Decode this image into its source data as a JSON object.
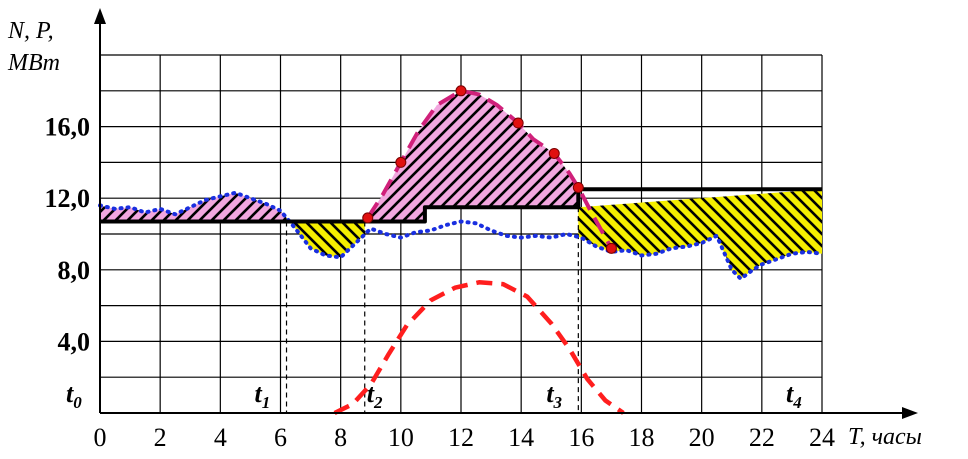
{
  "chart_data": {
    "type": "line",
    "title": "",
    "xlabel": "T, часы",
    "ylabel_lines": [
      "N, P,",
      "MBm"
    ],
    "xlim": [
      0,
      24
    ],
    "ylim": [
      0,
      20
    ],
    "grid": true,
    "x_ticks": [
      "0",
      "2",
      "4",
      "6",
      "8",
      "10",
      "12",
      "14",
      "16",
      "18",
      "20",
      "22",
      "24"
    ],
    "y_ticks": [
      {
        "value": 4,
        "label": "4,0"
      },
      {
        "value": 8,
        "label": "8,0"
      },
      {
        "value": 12,
        "label": "12,0"
      },
      {
        "value": 16,
        "label": "16,0"
      }
    ],
    "time_markers": [
      {
        "base": "t",
        "sub": "0",
        "x": 0
      },
      {
        "base": "t",
        "sub": "1",
        "x": 6.2
      },
      {
        "base": "t",
        "sub": "2",
        "x": 8.8
      },
      {
        "base": "t",
        "sub": "3",
        "x": 15.9
      },
      {
        "base": "t",
        "sub": "4",
        "x": 24
      }
    ],
    "series": [
      {
        "id": "dotted",
        "color": "#1a2fe0",
        "points": [
          [
            0,
            11.6
          ],
          [
            0.5,
            11.4
          ],
          [
            1,
            11.5
          ],
          [
            1.5,
            11.2
          ],
          [
            2,
            11.4
          ],
          [
            2.5,
            11.1
          ],
          [
            3,
            11.5
          ],
          [
            3.5,
            11.9
          ],
          [
            4,
            12.1
          ],
          [
            4.5,
            12.3
          ],
          [
            5,
            12.0
          ],
          [
            5.5,
            11.7
          ],
          [
            6,
            11.3
          ],
          [
            6.5,
            10.3
          ],
          [
            7,
            9.2
          ],
          [
            7.5,
            8.8
          ],
          [
            8,
            8.7
          ],
          [
            8.5,
            9.5
          ],
          [
            9,
            10.3
          ],
          [
            9.5,
            10.0
          ],
          [
            10,
            9.8
          ],
          [
            10.5,
            10.1
          ],
          [
            11,
            10.2
          ],
          [
            11.5,
            10.5
          ],
          [
            12,
            10.7
          ],
          [
            12.5,
            10.6
          ],
          [
            13,
            10.2
          ],
          [
            13.5,
            9.9
          ],
          [
            14,
            9.8
          ],
          [
            14.5,
            9.9
          ],
          [
            15,
            9.8
          ],
          [
            15.5,
            10.0
          ],
          [
            16,
            9.8
          ],
          [
            16.5,
            9.3
          ],
          [
            17,
            9.0
          ],
          [
            17.5,
            9.1
          ],
          [
            18,
            8.8
          ],
          [
            18.5,
            8.9
          ],
          [
            19,
            9.2
          ],
          [
            19.5,
            9.3
          ],
          [
            20,
            9.5
          ],
          [
            20.5,
            9.9
          ],
          [
            21,
            8.0
          ],
          [
            21.3,
            7.5
          ],
          [
            21.7,
            8.0
          ],
          [
            22,
            8.3
          ],
          [
            22.5,
            8.6
          ],
          [
            23,
            8.9
          ],
          [
            23.5,
            9.0
          ],
          [
            24,
            8.9
          ]
        ]
      },
      {
        "id": "step",
        "color": "#000000",
        "points": [
          [
            0,
            10.7
          ],
          [
            10.8,
            10.7
          ],
          [
            10.8,
            11.5
          ],
          [
            15.9,
            11.5
          ],
          [
            15.9,
            12.5
          ],
          [
            24,
            12.5
          ]
        ]
      },
      {
        "id": "magenta-dashed",
        "color": "#d0207a",
        "points": [
          [
            8.9,
            10.9
          ],
          [
            9.4,
            12.2
          ],
          [
            10,
            14.0
          ],
          [
            10.6,
            15.8
          ],
          [
            11.2,
            17.2
          ],
          [
            12,
            18.0
          ],
          [
            12.6,
            17.8
          ],
          [
            13.2,
            17.2
          ],
          [
            13.9,
            16.2
          ],
          [
            14.4,
            15.3
          ],
          [
            15.1,
            14.5
          ],
          [
            15.6,
            13.4
          ],
          [
            15.9,
            12.6
          ],
          [
            16.4,
            11.0
          ],
          [
            16.7,
            10.1
          ],
          [
            17,
            9.2
          ]
        ]
      },
      {
        "id": "red-dashed",
        "color": "#ff1e1e",
        "points": [
          [
            7.8,
            0
          ],
          [
            8.4,
            0.5
          ],
          [
            9,
            1.6
          ],
          [
            9.6,
            3.3
          ],
          [
            10.2,
            4.9
          ],
          [
            11,
            6.3
          ],
          [
            11.8,
            7.0
          ],
          [
            12.6,
            7.3
          ],
          [
            13.4,
            7.2
          ],
          [
            14.2,
            6.5
          ],
          [
            15,
            5.0
          ],
          [
            15.6,
            3.6
          ],
          [
            16.2,
            1.9
          ],
          [
            16.8,
            0.7
          ],
          [
            17.4,
            0
          ]
        ]
      }
    ],
    "markers": [
      [
        8.9,
        10.9
      ],
      [
        10,
        14.0
      ],
      [
        12,
        18.0
      ],
      [
        13.9,
        16.2
      ],
      [
        15.1,
        14.5
      ],
      [
        15.9,
        12.6
      ],
      [
        17,
        9.2
      ]
    ],
    "fills": [
      {
        "id": "fill-a",
        "color": "#f2a7df",
        "from_x": 0,
        "to_x": 6.2,
        "top": "dotted",
        "bottom": "step"
      },
      {
        "id": "fill-b",
        "color": "#f4ee00",
        "from_x": 6.2,
        "to_x": 8.8,
        "top": "step",
        "bottom": "dotted"
      },
      {
        "id": "fill-c",
        "color": "#f2a7df",
        "from_x": 8.8,
        "to_x": 15.9,
        "top": "magenta-dashed",
        "bottom": "step"
      },
      {
        "id": "fill-d",
        "color": "#f4ee00",
        "from_x": 15.9,
        "to_x": 24,
        "top": "step",
        "bottom": "dotted"
      }
    ],
    "drop_lines_x": [
      6.2,
      8.8,
      15.9
    ]
  }
}
